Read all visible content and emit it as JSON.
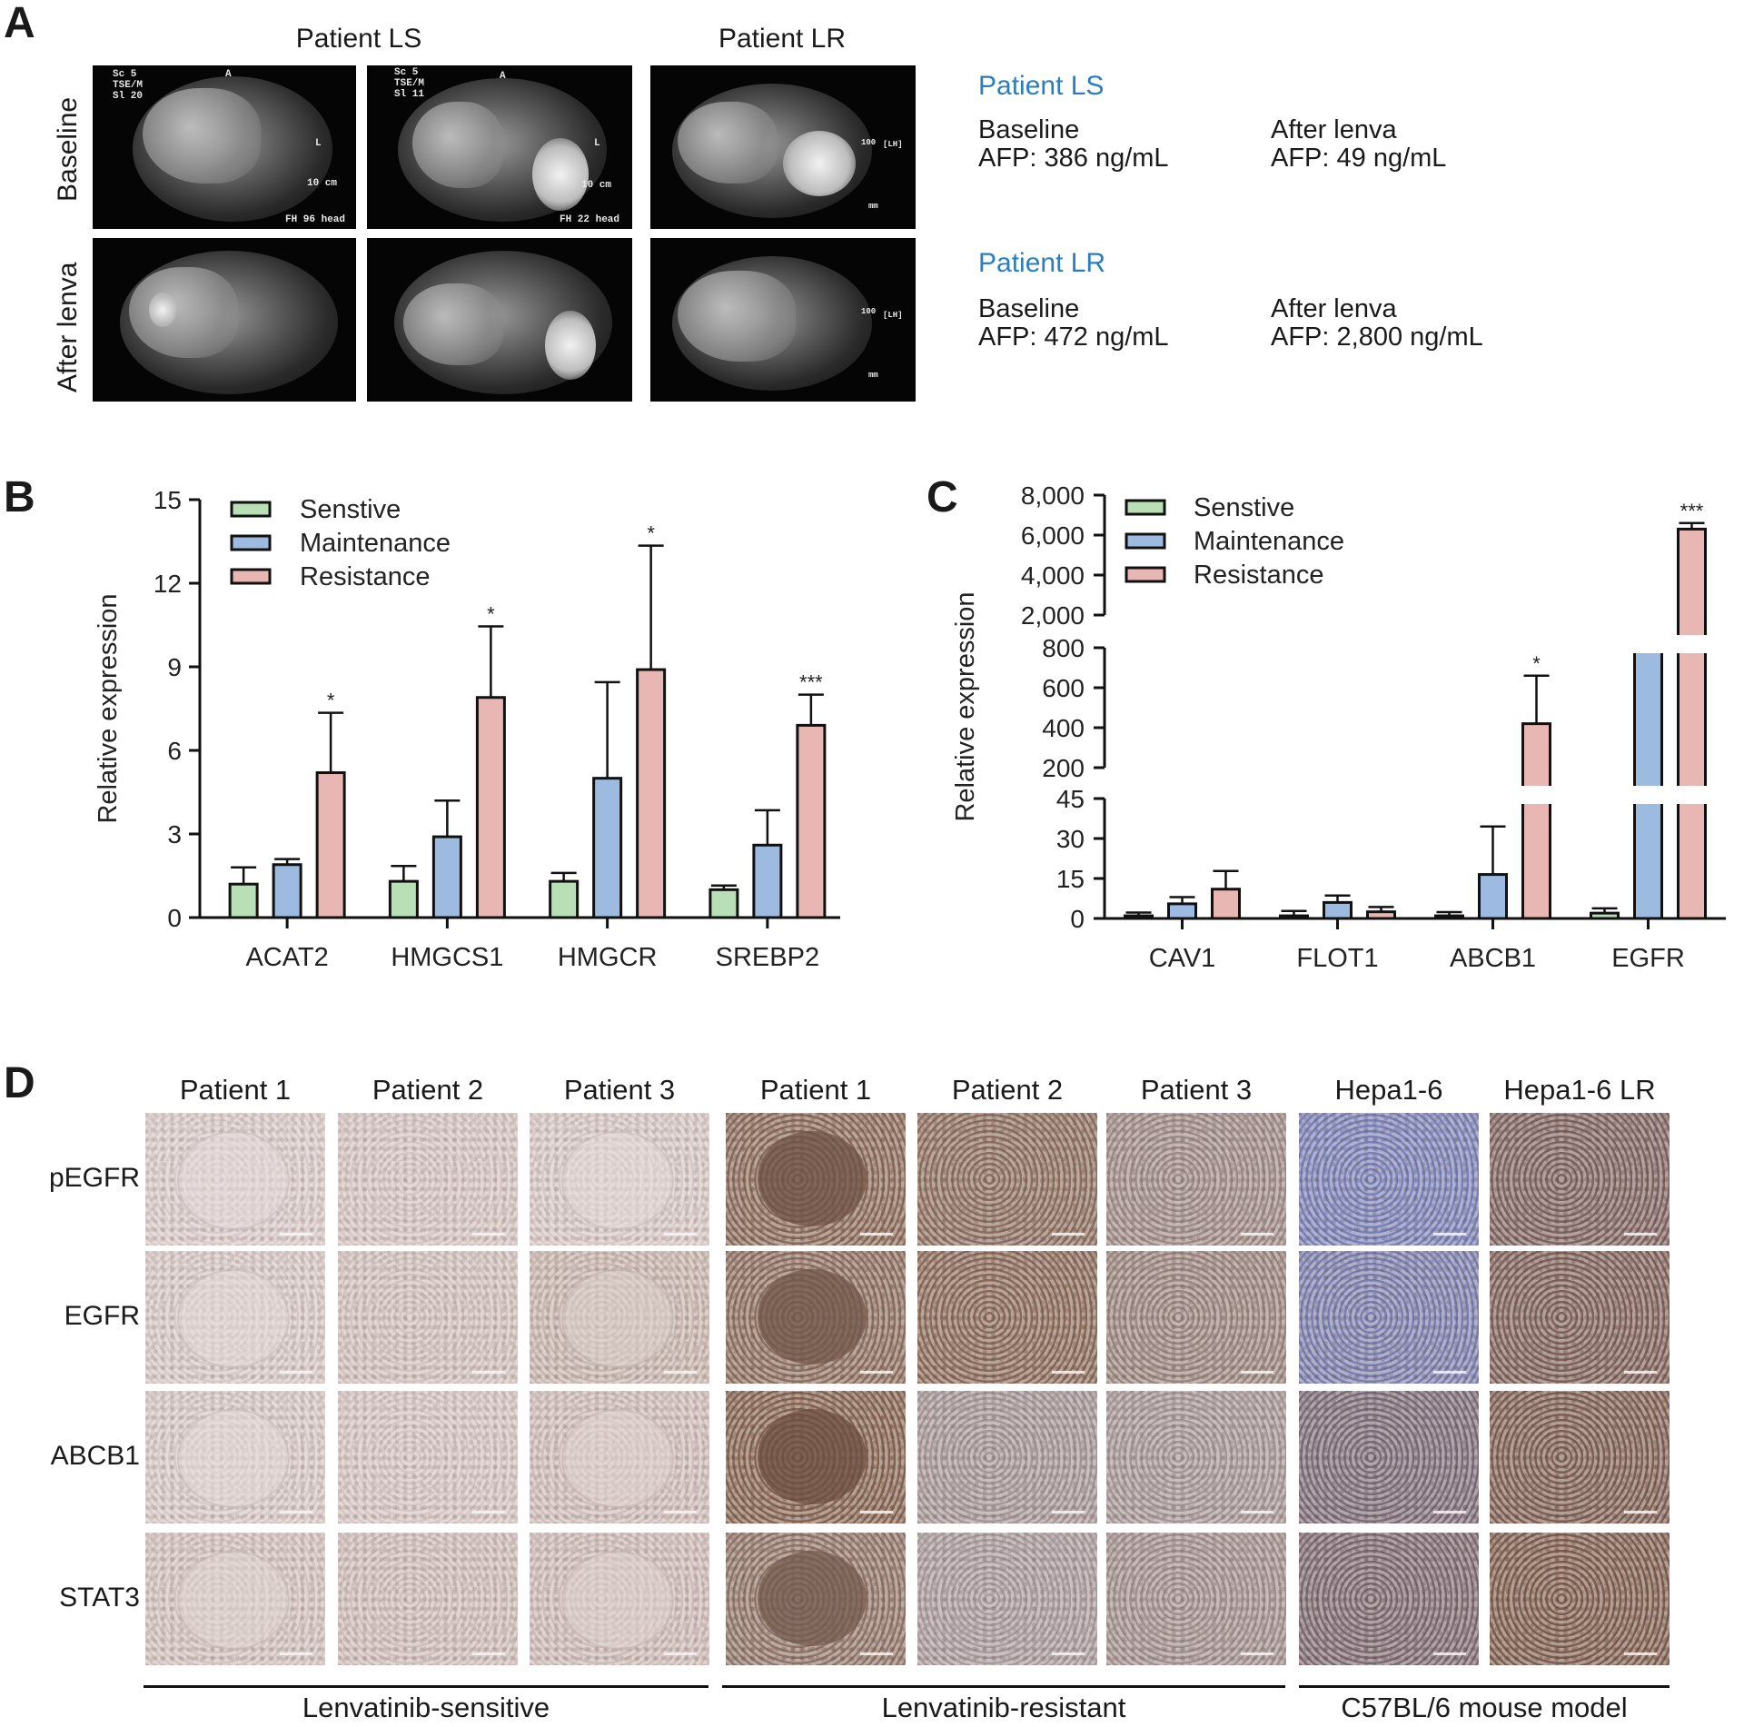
{
  "panels": {
    "a": "A",
    "b": "B",
    "c": "C",
    "d": "D"
  },
  "panel_a": {
    "col_headers": [
      "Patient LS",
      "Patient LR"
    ],
    "row_labels": [
      "Baseline",
      "After lenva"
    ],
    "mri_annotations": {
      "ls_baseline_1": {
        "top_left": "Sc 5\nTSE/M\nSl 20",
        "scale": "10 cm",
        "bottom": "FH 96 head",
        "top_mark": "A",
        "side_mark": "L"
      },
      "ls_baseline_2": {
        "top_left": "Sc 5\nTSE/M\nSl 11",
        "scale": "10 cm",
        "bottom": "FH 22 head",
        "top_mark": "A",
        "side_mark": "L"
      },
      "lr_side": {
        "scale_top": "100",
        "scale_unit": "mm",
        "lh": "[LH]"
      }
    },
    "info": [
      {
        "title": "Patient LS",
        "baseline_label": "Baseline",
        "baseline_afp": "AFP: 386 ng/mL",
        "after_label": "After lenva",
        "after_afp": "AFP: 49 ng/mL"
      },
      {
        "title": "Patient LR",
        "baseline_label": "Baseline",
        "baseline_afp": "AFP: 472 ng/mL",
        "after_label": "After lenva",
        "after_afp": "AFP: 2,800 ng/mL"
      }
    ]
  },
  "chart_data": [
    {
      "type": "bar",
      "panel": "B",
      "categories": [
        "ACAT2",
        "HMGCS1",
        "HMGCR",
        "SREBP2"
      ],
      "series": [
        {
          "name": "Senstive",
          "color": "#b9dfb6",
          "values": [
            1.2,
            1.3,
            1.3,
            1.0
          ],
          "errors": [
            0.6,
            0.55,
            0.3,
            0.15
          ]
        },
        {
          "name": "Maintenance",
          "color": "#9dbbe0",
          "values": [
            1.9,
            2.9,
            5.0,
            2.6
          ],
          "errors": [
            0.2,
            1.3,
            3.45,
            1.25
          ]
        },
        {
          "name": "Resistance",
          "color": "#e9b7b3",
          "values": [
            5.2,
            7.9,
            8.9,
            6.9
          ],
          "errors": [
            2.15,
            2.55,
            4.45,
            1.1
          ]
        }
      ],
      "significance": [
        "*",
        "*",
        "*",
        "***"
      ],
      "ylabel": "Relative expression",
      "ylim": [
        0,
        15
      ],
      "yticks": [
        0,
        3,
        6,
        9,
        12,
        15
      ],
      "legend": "top-left"
    },
    {
      "type": "bar",
      "panel": "C",
      "categories": [
        "CAV1",
        "FLOT1",
        "ABCB1",
        "EGFR"
      ],
      "series": [
        {
          "name": "Senstive",
          "color": "#b9dfb6",
          "values": [
            1.0,
            1.0,
            1.0,
            2.0
          ],
          "errors": [
            1.2,
            1.8,
            1.4,
            1.8
          ]
        },
        {
          "name": "Maintenance",
          "color": "#9dbbe0",
          "values": [
            5.5,
            6.0,
            16.5,
            1000
          ],
          "errors": [
            2.5,
            2.6,
            18.0,
            950
          ]
        },
        {
          "name": "Resistance",
          "color": "#e9b7b3",
          "values": [
            11.0,
            2.5,
            420,
            6300
          ],
          "errors": [
            6.8,
            1.8,
            240,
            300
          ]
        }
      ],
      "significance": [
        "",
        "",
        "*",
        "***"
      ],
      "ylabel": "Relative expression",
      "segments": [
        {
          "range": [
            0,
            45
          ],
          "ticks": [
            "0",
            "15",
            "30",
            "45"
          ]
        },
        {
          "range": [
            200,
            800
          ],
          "ticks": [
            "200",
            "400",
            "600",
            "800"
          ]
        },
        {
          "range": [
            2000,
            8000
          ],
          "ticks": [
            "2,000",
            "4,000",
            "6,000",
            "8,000"
          ]
        }
      ],
      "legend": "top-left"
    }
  ],
  "panel_d": {
    "col_headers": [
      "Patient 1",
      "Patient 2",
      "Patient 3",
      "Patient 1",
      "Patient 2",
      "Patient 3",
      "Hepa1-6",
      "Hepa1-6 LR"
    ],
    "row_labels": [
      "pEGFR",
      "EGFR",
      "ABCB1",
      "STAT3"
    ],
    "group_labels": [
      "Lenvatinib-sensitive",
      "Lenvatinib-resistant",
      "C57BL/6 mouse model"
    ],
    "stain_intensity": [
      [
        0.08,
        0.12,
        0.1,
        0.85,
        0.8,
        0.55,
        0.05,
        0.75
      ],
      [
        0.1,
        0.15,
        0.25,
        0.8,
        0.85,
        0.6,
        0.12,
        0.8
      ],
      [
        0.1,
        0.12,
        0.18,
        0.9,
        0.45,
        0.45,
        0.55,
        0.85
      ],
      [
        0.15,
        0.18,
        0.2,
        0.75,
        0.4,
        0.5,
        0.6,
        0.9
      ]
    ]
  }
}
